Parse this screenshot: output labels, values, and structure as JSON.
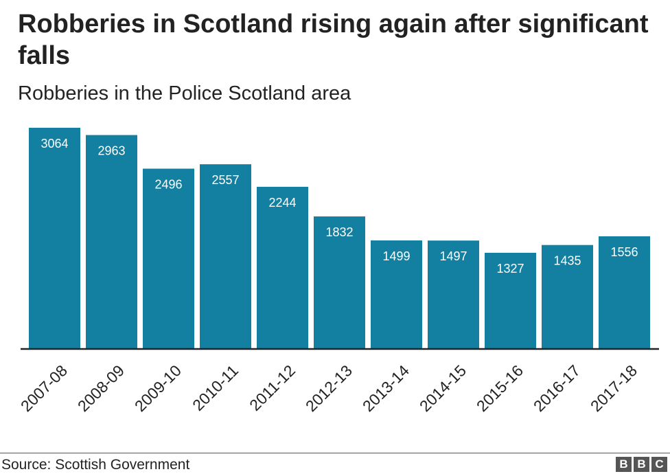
{
  "title": "Robberies in Scotland rising again after significant falls",
  "subtitle": "Robberies in the Police Scotland area",
  "source": "Source: Scottish Government",
  "logo": {
    "letters": [
      "B",
      "B",
      "C"
    ]
  },
  "colors": {
    "bar": "#1380A1",
    "bar_label": "#ffffff",
    "axis": "#222222"
  },
  "chart_data": {
    "type": "bar",
    "title": "Robberies in Scotland rising again after significant falls",
    "subtitle": "Robberies in the Police Scotland area",
    "categories": [
      "2007-08",
      "2008-09",
      "2009-10",
      "2010-11",
      "2011-12",
      "2012-13",
      "2013-14",
      "2014-15",
      "2015-16",
      "2016-17",
      "2017-18"
    ],
    "values": [
      3064,
      2963,
      2496,
      2557,
      2244,
      1832,
      1499,
      1497,
      1327,
      1435,
      1556
    ],
    "ylim": [
      0,
      3064
    ],
    "grid": false,
    "legend": "none"
  }
}
